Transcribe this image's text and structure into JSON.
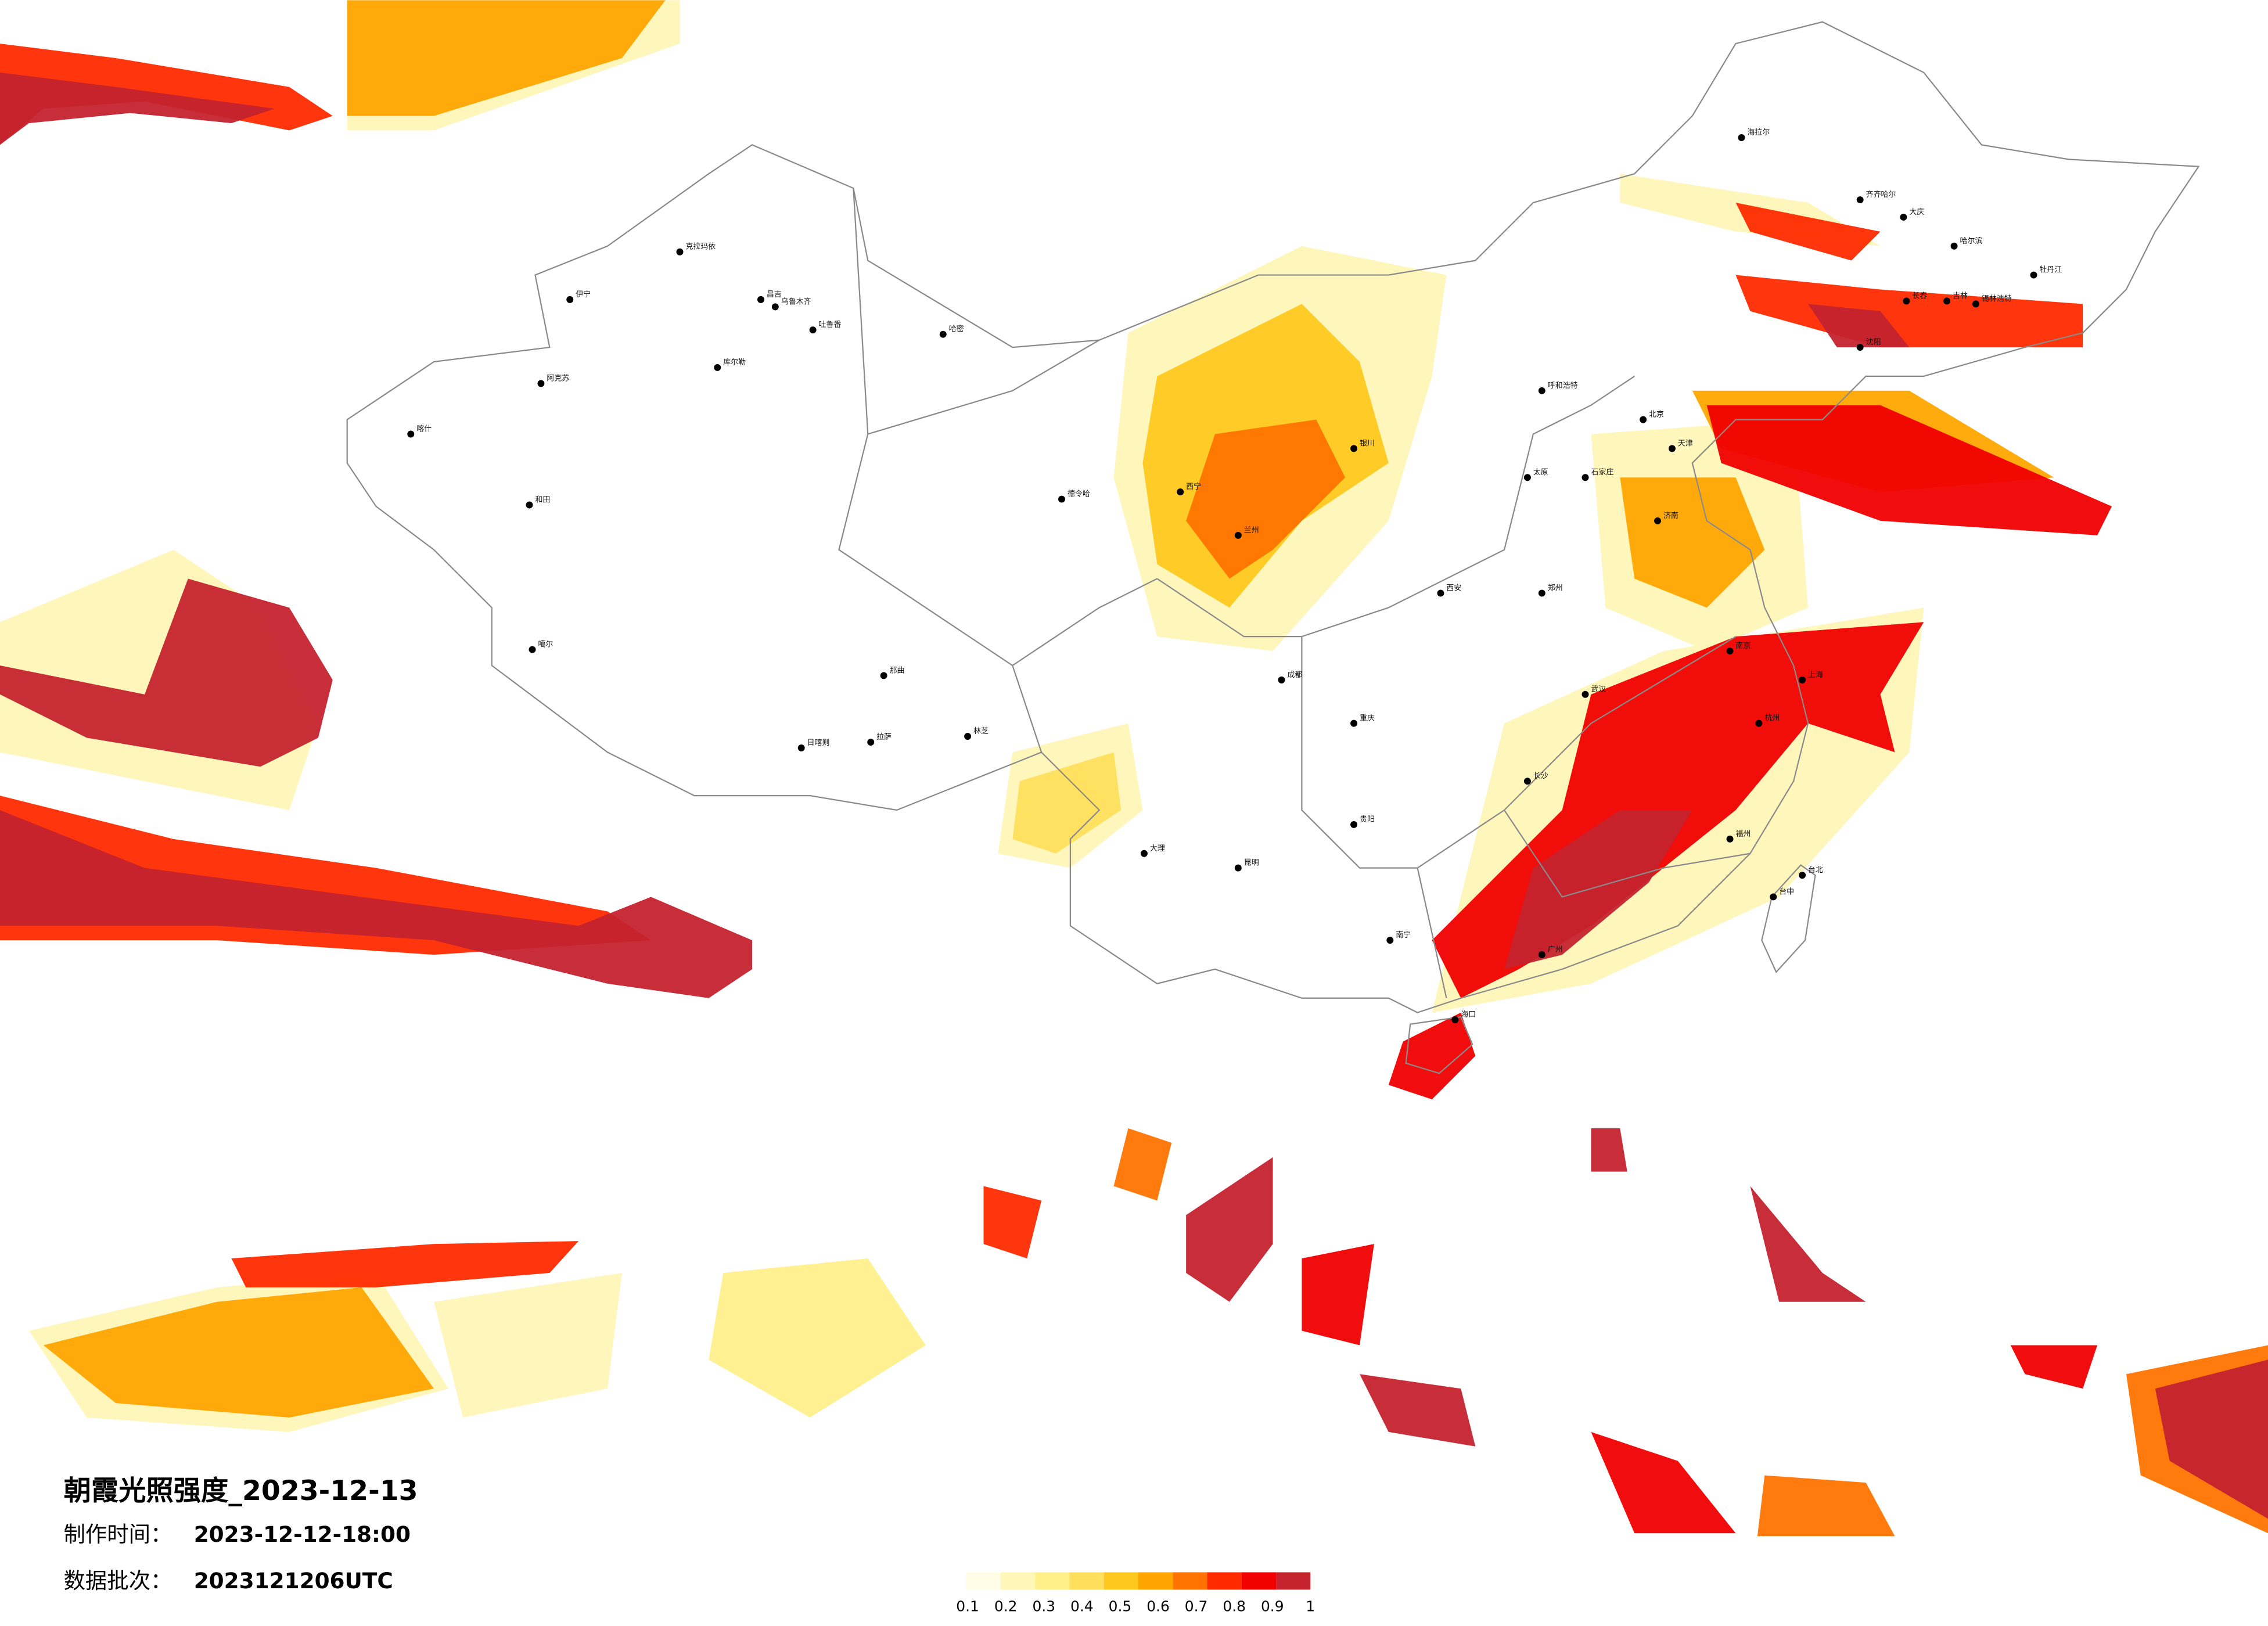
{
  "title": "朝霞光照强度_2023-12-13",
  "production_time": {
    "label": "制作时间：",
    "value": "2023-12-12-18:00"
  },
  "data_batch": {
    "label": "数据批次：",
    "value": "2023121206UTC"
  },
  "legend": {
    "ticks": [
      0.1,
      0.2,
      0.3,
      0.4,
      0.5,
      0.6,
      0.7,
      0.8,
      0.9,
      1
    ],
    "colors": [
      "#fffde6",
      "#fff6b8",
      "#fff08c",
      "#ffdf5c",
      "#ffc81e",
      "#ffa500",
      "#ff7400",
      "#ff2a00",
      "#f00000",
      "#c4232e"
    ]
  },
  "cities": [
    "克拉玛依",
    "昌吉",
    "乌鲁木齐",
    "吐鲁番",
    "哈密",
    "伊宁",
    "阿克苏",
    "库尔勒",
    "和田",
    "喀什",
    "噶尔",
    "日喀则",
    "拉萨",
    "林芝",
    "那曲",
    "德令哈",
    "海拉尔",
    "齐齐哈尔",
    "大庆",
    "哈尔滨",
    "长春",
    "吉林",
    "沈阳",
    "呼和浩特",
    "北京",
    "天津",
    "石家庄",
    "太原",
    "济南",
    "郑州",
    "西安",
    "兰州",
    "西宁",
    "银川",
    "成都",
    "重庆",
    "贵阳",
    "昆明",
    "南宁",
    "广州",
    "长沙",
    "武汉",
    "南京",
    "上海",
    "杭州",
    "福州",
    "台北",
    "台中",
    "海口",
    "牡丹江",
    "锡林浩特",
    "大理"
  ]
}
